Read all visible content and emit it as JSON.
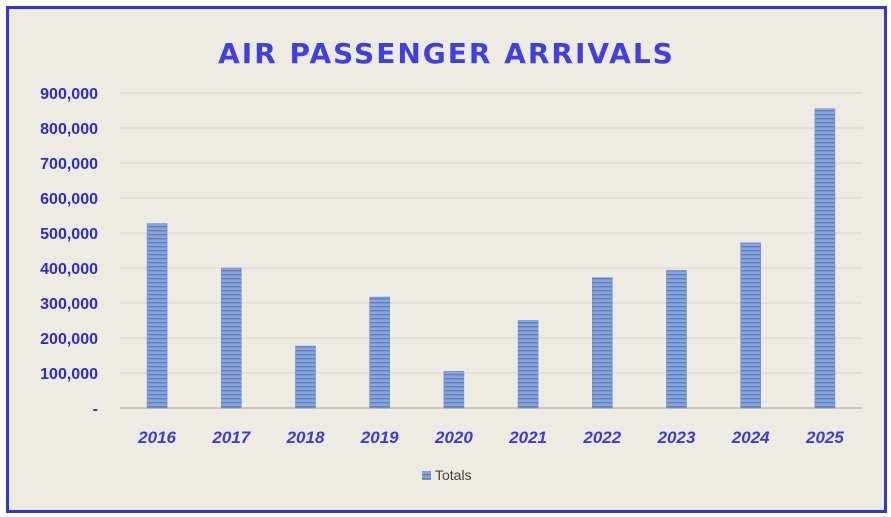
{
  "chart_data": {
    "type": "bar",
    "title": "AIR PASSENGER ARRIVALS",
    "xlabel": "",
    "ylabel": "",
    "categories": [
      "2016",
      "2017",
      "2018",
      "2019",
      "2020",
      "2021",
      "2022",
      "2023",
      "2024",
      "2025"
    ],
    "series": [
      {
        "name": "Totals",
        "values": [
          527000,
          400000,
          177000,
          317000,
          105000,
          250000,
          372000,
          393000,
          472000,
          855000
        ]
      }
    ],
    "ylim": [
      0,
      900000
    ],
    "yticks": [
      0,
      100000,
      200000,
      300000,
      400000,
      500000,
      600000,
      700000,
      800000,
      900000
    ],
    "ytick_labels": [
      "-",
      "100,000",
      "200,000",
      "300,000",
      "400,000",
      "500,000",
      "600,000",
      "700,000",
      "800,000",
      "900,000"
    ],
    "grid": true,
    "legend_position": "bottom",
    "colors": {
      "bar": "#7f9fd6",
      "bar_stripe": "#5e7fbf",
      "title": "#3f3fe6",
      "frame": "#3333e6",
      "background": "#eeebe2",
      "gridline": "#d9d6cc",
      "axis_text": "#2b2bd6"
    }
  }
}
